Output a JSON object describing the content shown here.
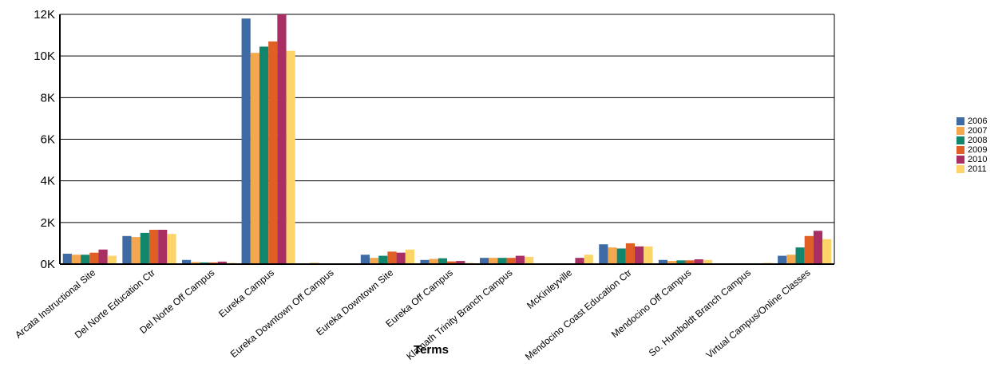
{
  "chart_data": {
    "type": "bar",
    "x_label": "Terms",
    "categories": [
      "Arcata Instructional Site",
      "Del Norte Education Ctr",
      "Del Norte Off Campus",
      "Eureka Campus",
      "Eureka Downtown Off Campus",
      "Eureka Downtown Site",
      "Eureka Off Campus",
      "Klamath Trinity Branch Campus",
      "McKinleyville",
      "Mendocino Coast Education Ctr",
      "Mendocino Off Campus",
      "So. Humboldt Branch Campus",
      "Virtual Campus/Online Classes"
    ],
    "series": [
      {
        "name": "2006",
        "color": "#3e6ba5",
        "values": [
          500,
          1350,
          200,
          11800,
          20,
          450,
          200,
          300,
          0,
          950,
          200,
          20,
          400
        ]
      },
      {
        "name": "2007",
        "color": "#f4a74f",
        "values": [
          450,
          1300,
          100,
          10150,
          60,
          300,
          250,
          300,
          0,
          800,
          150,
          30,
          450
        ]
      },
      {
        "name": "2008",
        "color": "#11866d",
        "values": [
          450,
          1500,
          80,
          10450,
          10,
          400,
          280,
          300,
          0,
          750,
          180,
          20,
          800
        ]
      },
      {
        "name": "2009",
        "color": "#e05f24",
        "values": [
          550,
          1650,
          80,
          10700,
          10,
          600,
          130,
          300,
          0,
          1000,
          180,
          20,
          1350
        ]
      },
      {
        "name": "2010",
        "color": "#a92e63",
        "values": [
          700,
          1650,
          120,
          12000,
          10,
          550,
          150,
          400,
          300,
          850,
          230,
          30,
          1600
        ]
      },
      {
        "name": "2011",
        "color": "#fdd468",
        "values": [
          400,
          1450,
          60,
          10250,
          10,
          700,
          60,
          350,
          450,
          850,
          200,
          60,
          1200
        ]
      }
    ],
    "ylim": [
      0,
      12000
    ],
    "yticks": [
      {
        "value": 0,
        "label": "0K"
      },
      {
        "value": 2000,
        "label": "2K"
      },
      {
        "value": 4000,
        "label": "4K"
      },
      {
        "value": 6000,
        "label": "6K"
      },
      {
        "value": 8000,
        "label": "8K"
      },
      {
        "value": 10000,
        "label": "10K"
      },
      {
        "value": 12000,
        "label": "12K"
      }
    ],
    "grid": true,
    "legend": "right"
  }
}
